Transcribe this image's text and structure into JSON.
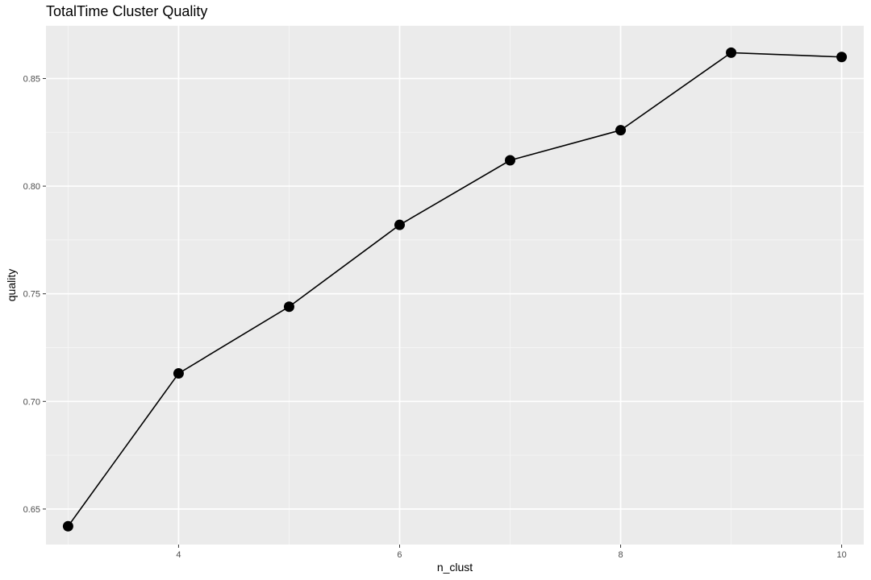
{
  "chart_data": {
    "type": "line",
    "title": "TotalTime Cluster Quality",
    "xlabel": "n_clust",
    "ylabel": "quality",
    "x": [
      3,
      4,
      5,
      6,
      7,
      8,
      9,
      10
    ],
    "y": [
      0.642,
      0.713,
      0.744,
      0.782,
      0.812,
      0.826,
      0.862,
      0.86
    ],
    "xlim": [
      2.8,
      10.2
    ],
    "ylim": [
      0.6335,
      0.8745
    ],
    "x_ticks": [
      4,
      6,
      8,
      10
    ],
    "x_tick_labels": [
      "4",
      "6",
      "8",
      "10"
    ],
    "y_ticks": [
      0.65,
      0.7,
      0.75,
      0.8,
      0.85
    ],
    "y_tick_labels": [
      "0.65",
      "0.70",
      "0.75",
      "0.80",
      "0.85"
    ],
    "grid": true,
    "colors": {
      "panel_background": "#ebebeb",
      "grid_major": "#ffffff",
      "grid_minor": "#f5f5f5",
      "line": "#000000",
      "point": "#000000",
      "tick_text": "#4d4d4d",
      "tick_mark": "#333333"
    }
  }
}
